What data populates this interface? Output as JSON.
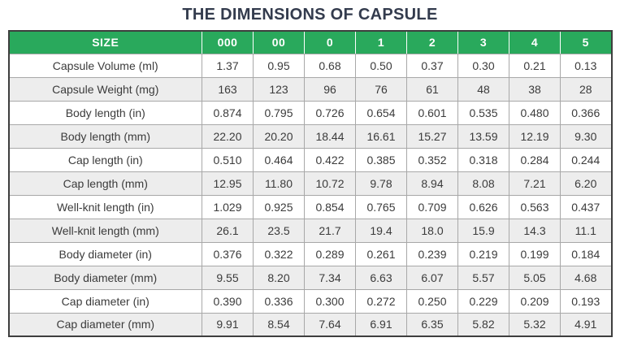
{
  "title": "THE DIMENSIONS OF CAPSULE",
  "colors": {
    "header_bg": "#29a95c",
    "header_text": "#ffffff",
    "row_alt_bg": "#ededed",
    "outer_border": "#3e3e3e",
    "inner_border": "#a8a8a8",
    "title_color": "#333b4d",
    "body_text": "#3b3b3b"
  },
  "chart_data": {
    "type": "table",
    "title": "THE DIMENSIONS OF CAPSULE",
    "columns": [
      "SIZE",
      "000",
      "00",
      "0",
      "1",
      "2",
      "3",
      "4",
      "5"
    ],
    "rows": [
      {
        "label": "Capsule Volume (ml)",
        "values": [
          "1.37",
          "0.95",
          "0.68",
          "0.50",
          "0.37",
          "0.30",
          "0.21",
          "0.13"
        ]
      },
      {
        "label": "Capsule Weight (mg)",
        "values": [
          "163",
          "123",
          "96",
          "76",
          "61",
          "48",
          "38",
          "28"
        ]
      },
      {
        "label": "Body length (in)",
        "values": [
          "0.874",
          "0.795",
          "0.726",
          "0.654",
          "0.601",
          "0.535",
          "0.480",
          "0.366"
        ]
      },
      {
        "label": "Body length (mm)",
        "values": [
          "22.20",
          "20.20",
          "18.44",
          "16.61",
          "15.27",
          "13.59",
          "12.19",
          "9.30"
        ]
      },
      {
        "label": "Cap length (in)",
        "values": [
          "0.510",
          "0.464",
          "0.422",
          "0.385",
          "0.352",
          "0.318",
          "0.284",
          "0.244"
        ]
      },
      {
        "label": "Cap length (mm)",
        "values": [
          "12.95",
          "11.80",
          "10.72",
          "9.78",
          "8.94",
          "8.08",
          "7.21",
          "6.20"
        ]
      },
      {
        "label": "Well-knit length (in)",
        "values": [
          "1.029",
          "0.925",
          "0.854",
          "0.765",
          "0.709",
          "0.626",
          "0.563",
          "0.437"
        ]
      },
      {
        "label": "Well-knit length (mm)",
        "values": [
          "26.1",
          "23.5",
          "21.7",
          "19.4",
          "18.0",
          "15.9",
          "14.3",
          "11.1"
        ]
      },
      {
        "label": "Body diameter (in)",
        "values": [
          "0.376",
          "0.322",
          "0.289",
          "0.261",
          "0.239",
          "0.219",
          "0.199",
          "0.184"
        ]
      },
      {
        "label": "Body diameter (mm)",
        "values": [
          "9.55",
          "8.20",
          "7.34",
          "6.63",
          "6.07",
          "5.57",
          "5.05",
          "4.68"
        ]
      },
      {
        "label": "Cap diameter (in)",
        "values": [
          "0.390",
          "0.336",
          "0.300",
          "0.272",
          "0.250",
          "0.229",
          "0.209",
          "0.193"
        ]
      },
      {
        "label": "Cap diameter (mm)",
        "values": [
          "9.91",
          "8.54",
          "7.64",
          "6.91",
          "6.35",
          "5.82",
          "5.32",
          "4.91"
        ]
      }
    ]
  }
}
